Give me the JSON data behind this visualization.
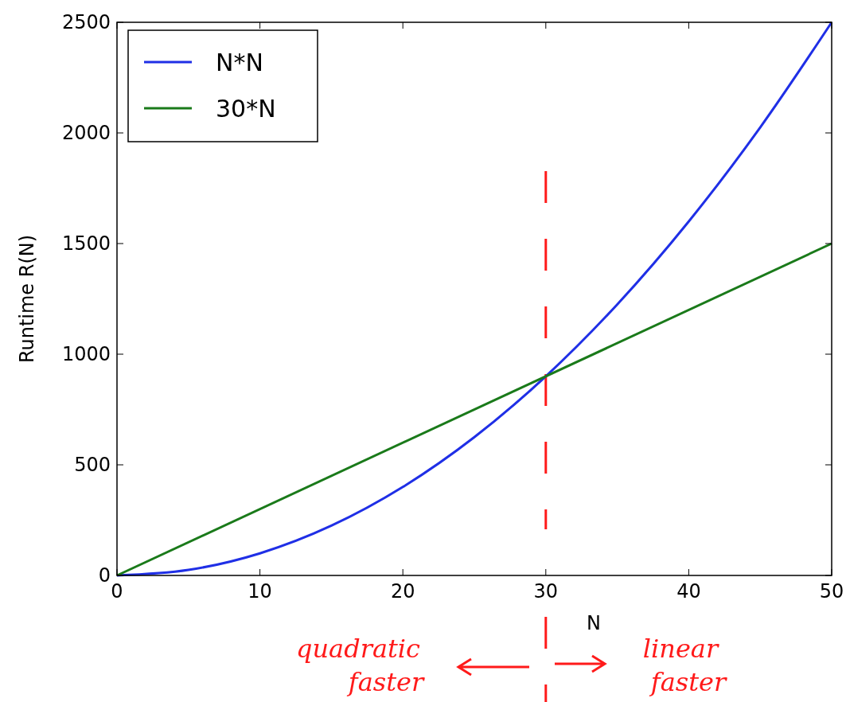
{
  "chart_data": {
    "type": "line",
    "xlabel": "N",
    "ylabel": "Runtime R(N)",
    "xlim": [
      0,
      50
    ],
    "ylim": [
      0,
      2500
    ],
    "xticks": [
      0,
      10,
      20,
      30,
      40,
      50
    ],
    "yticks": [
      0,
      500,
      1000,
      1500,
      2000,
      2500
    ],
    "series": [
      {
        "name": "N*N",
        "color": "#1f2fe6",
        "x": [
          0,
          5,
          10,
          15,
          20,
          25,
          30,
          35,
          40,
          45,
          50
        ],
        "values": [
          0,
          25,
          100,
          225,
          400,
          625,
          900,
          1225,
          1600,
          2025,
          2500
        ]
      },
      {
        "name": "30*N",
        "color": "#1a7a1a",
        "x": [
          0,
          50
        ],
        "values": [
          0,
          1500
        ]
      }
    ],
    "legend": "top left",
    "grid": false,
    "line_style": "solid",
    "marker": "none",
    "ref_lines": [
      {
        "axis": "x",
        "value": 30,
        "color": "#ff1a1a",
        "line_style": "dashed"
      }
    ],
    "annotations": [
      "quadratic faster",
      "linear faster"
    ]
  }
}
